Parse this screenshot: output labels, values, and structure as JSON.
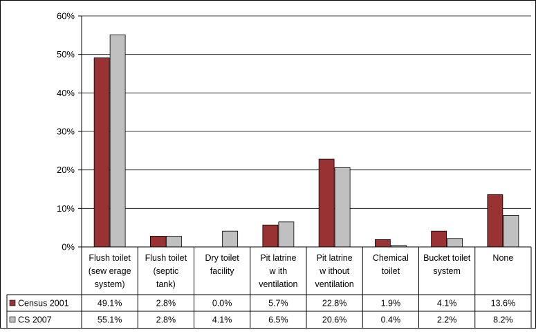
{
  "chart_data": {
    "type": "bar",
    "categories": [
      [
        "Flush toilet",
        "(sew erage",
        "system)"
      ],
      [
        "Flush toilet",
        "(septic",
        "tank)"
      ],
      [
        "Dry toilet",
        "facility"
      ],
      [
        "Pit latrine",
        "w ith",
        "ventilation"
      ],
      [
        "Pit latrine",
        "w ithout",
        "ventilation"
      ],
      [
        "Chemical",
        "toilet"
      ],
      [
        "Bucket toilet",
        "system"
      ],
      [
        "None"
      ]
    ],
    "series": [
      {
        "name": "Census 2001",
        "color": "#993333",
        "values": [
          49.1,
          2.8,
          0.0,
          5.7,
          22.8,
          1.9,
          4.1,
          13.6
        ],
        "labels": [
          "49.1%",
          "2.8%",
          "0.0%",
          "5.7%",
          "22.8%",
          "1.9%",
          "4.1%",
          "13.6%"
        ]
      },
      {
        "name": "CS 2007",
        "color": "#c0c0c0",
        "values": [
          55.1,
          2.8,
          4.1,
          6.5,
          20.6,
          0.4,
          2.2,
          8.2
        ],
        "labels": [
          "55.1%",
          "2.8%",
          "4.1%",
          "6.5%",
          "20.6%",
          "0.4%",
          "2.2%",
          "8.2%"
        ]
      }
    ],
    "yticks": [
      "0%",
      "10%",
      "20%",
      "30%",
      "40%",
      "50%",
      "60%"
    ],
    "ylim": [
      0,
      60
    ],
    "grid": true,
    "legend": "data-table"
  }
}
